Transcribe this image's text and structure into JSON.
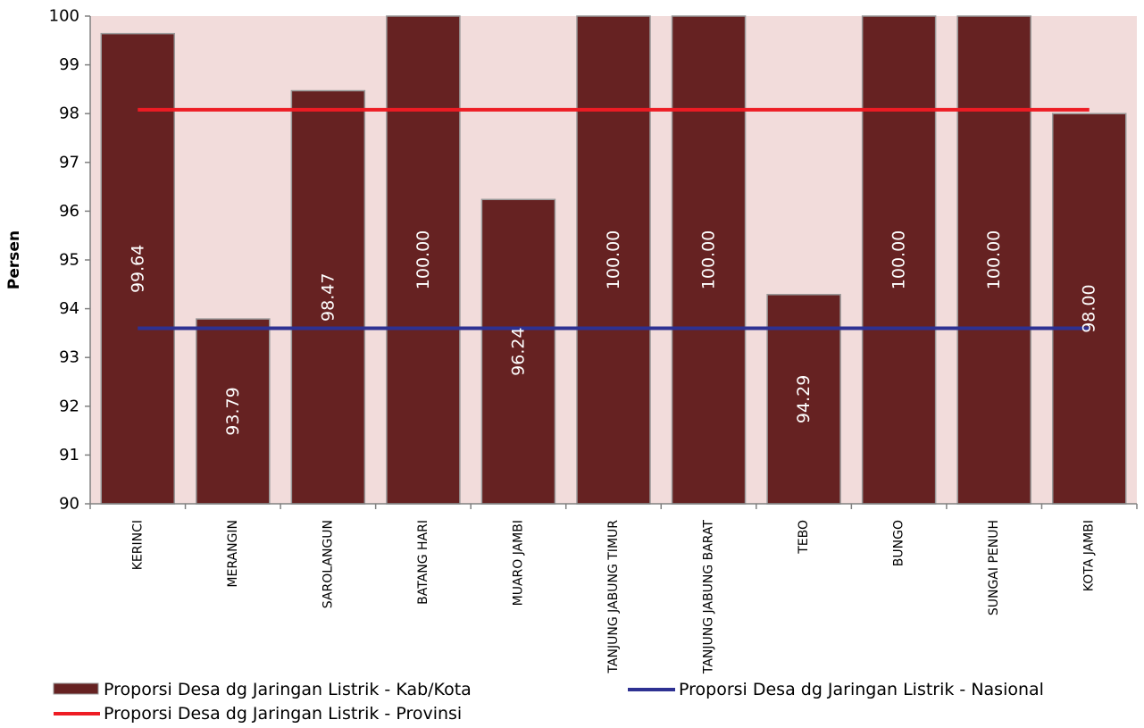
{
  "chart_data": {
    "type": "bar",
    "ylabel": "Persen",
    "xlabel": "",
    "ylim": [
      90,
      100
    ],
    "yticks": [
      "90",
      "91",
      "92",
      "93",
      "94",
      "95",
      "96",
      "97",
      "98",
      "99",
      "100"
    ],
    "categories": [
      "KERINCI",
      "MERANGIN",
      "SAROLANGUN",
      "BATANG HARI",
      "MUARO JAMBI",
      "TANJUNG JABUNG TIMUR",
      "TANJUNG JABUNG BARAT",
      "TEBO",
      "BUNGO",
      "SUNGAI PENUH",
      "KOTA JAMBI"
    ],
    "series": [
      {
        "name": "Proporsi Desa dg Jaringan Listrik - Kab/Kota",
        "kind": "bar",
        "color": "#662222",
        "values": [
          99.64,
          93.79,
          98.47,
          100.0,
          96.24,
          100.0,
          100.0,
          94.29,
          100.0,
          100.0,
          98.0
        ],
        "labels": [
          "99.64",
          "93.79",
          "98.47",
          "100.00",
          "96.24",
          "100.00",
          "100.00",
          "94.29",
          "100.00",
          "100.00",
          "98.00"
        ]
      },
      {
        "name": "Proporsi Desa dg Jaringan Listrik - Provinsi",
        "kind": "line",
        "color": "#ee1c24",
        "value": 98.08
      },
      {
        "name": "Proporsi Desa dg Jaringan Listrik - Nasional",
        "kind": "line",
        "color": "#2e3192",
        "value": 93.6
      }
    ],
    "plot_background": "#f2dcdb",
    "grid": false,
    "legend_position": "bottom"
  }
}
